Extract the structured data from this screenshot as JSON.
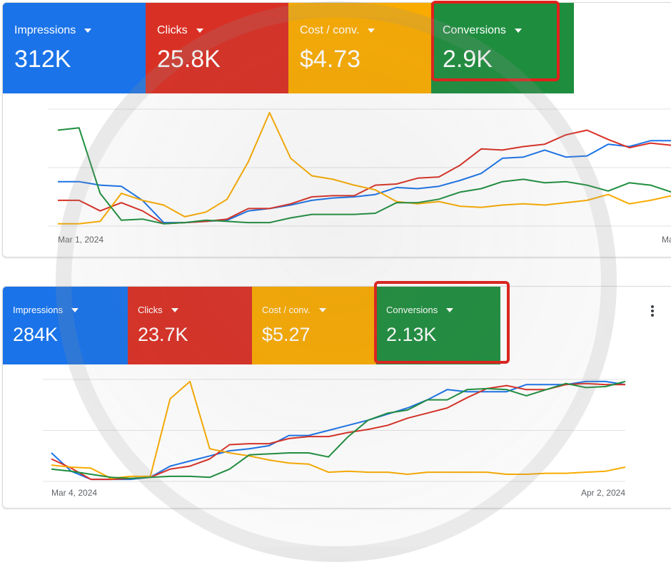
{
  "colors": {
    "impressions": "#1a73e8",
    "clicks": "#d93025",
    "cost": "#f9ab00",
    "conversions": "#1e8e3e",
    "highlight": "#e0211b"
  },
  "icons": {
    "metric_dropdown": "caret-down-icon",
    "more_menu": "more-vert-icon"
  },
  "panels": [
    {
      "metrics": [
        {
          "label": "Impressions",
          "value": "312K"
        },
        {
          "label": "Clicks",
          "value": "25.8K"
        },
        {
          "label": "Cost / conv.",
          "value": "$4.73"
        },
        {
          "label": "Conversions",
          "value": "2.9K"
        }
      ],
      "date_start": "Mar 1, 2024",
      "date_end": "Ma"
    },
    {
      "metrics": [
        {
          "label": "Impressions",
          "value": "284K"
        },
        {
          "label": "Clicks",
          "value": "23.7K"
        },
        {
          "label": "Cost / conv.",
          "value": "$5.27"
        },
        {
          "label": "Conversions",
          "value": "2.13K"
        }
      ],
      "date_start": "Mar 4, 2024",
      "date_end": "Apr 2, 2024"
    }
  ],
  "chart_data": [
    {
      "type": "line",
      "x_start": "Mar 1, 2024",
      "ylim": [
        0,
        100
      ],
      "grid": true,
      "series": [
        {
          "name": "Impressions",
          "color": "#1a73e8",
          "values": [
            38,
            38,
            35,
            34,
            22,
            3,
            3,
            4,
            5,
            13,
            15,
            18,
            22,
            24,
            25,
            27,
            33,
            32,
            34,
            39,
            45,
            58,
            59,
            65,
            59,
            60,
            70,
            68,
            73,
            73
          ]
        },
        {
          "name": "Clicks",
          "color": "#d93025",
          "values": [
            22,
            22,
            13,
            20,
            13,
            2,
            3,
            4,
            6,
            15,
            15,
            19,
            25,
            26,
            26,
            35,
            36,
            41,
            42,
            52,
            66,
            65,
            68,
            70,
            78,
            82,
            74,
            67,
            71,
            69
          ]
        },
        {
          "name": "Cost / conv.",
          "color": "#f9ab00",
          "values": [
            2,
            2,
            4,
            28,
            22,
            18,
            8,
            12,
            23,
            55,
            97,
            58,
            43,
            40,
            35,
            31,
            21,
            19,
            21,
            17,
            16,
            18,
            19,
            18,
            20,
            22,
            27,
            19,
            22,
            26
          ]
        },
        {
          "name": "Conversions",
          "color": "#1e8e3e",
          "values": [
            82,
            84,
            28,
            5,
            6,
            2,
            3,
            5,
            4,
            3,
            3,
            7,
            10,
            10,
            10,
            11,
            20,
            20,
            23,
            29,
            32,
            38,
            40,
            37,
            38,
            35,
            30,
            37,
            35,
            29
          ]
        }
      ]
    },
    {
      "type": "line",
      "x_start": "Mar 4, 2024",
      "x_end": "Apr 2, 2024",
      "ylim": [
        0,
        100
      ],
      "grid": true,
      "series": [
        {
          "name": "Impressions",
          "color": "#1a73e8",
          "values": [
            28,
            10,
            2,
            2,
            2,
            4,
            15,
            20,
            25,
            30,
            32,
            35,
            45,
            45,
            50,
            55,
            60,
            66,
            72,
            80,
            90,
            88,
            88,
            88,
            95,
            95,
            95,
            98,
            98,
            95
          ]
        },
        {
          "name": "Clicks",
          "color": "#d93025",
          "values": [
            22,
            13,
            2,
            2,
            3,
            4,
            12,
            15,
            22,
            36,
            37,
            37,
            42,
            44,
            44,
            48,
            51,
            55,
            62,
            67,
            72,
            82,
            91,
            94,
            90,
            90,
            95,
            96,
            95,
            95
          ]
        },
        {
          "name": "Cost / conv.",
          "color": "#f9ab00",
          "values": [
            16,
            14,
            13,
            3,
            5,
            5,
            81,
            98,
            32,
            28,
            25,
            21,
            18,
            17,
            9,
            10,
            9,
            9,
            7,
            9,
            9,
            9,
            9,
            7,
            7,
            8,
            8,
            9,
            10,
            14
          ]
        },
        {
          "name": "Conversions",
          "color": "#1e8e3e",
          "values": [
            12,
            10,
            7,
            4,
            3,
            4,
            5,
            5,
            4,
            12,
            26,
            27,
            28,
            28,
            24,
            44,
            60,
            67,
            70,
            80,
            80,
            90,
            91,
            90,
            84,
            90,
            96,
            92,
            93,
            98
          ]
        }
      ]
    }
  ]
}
